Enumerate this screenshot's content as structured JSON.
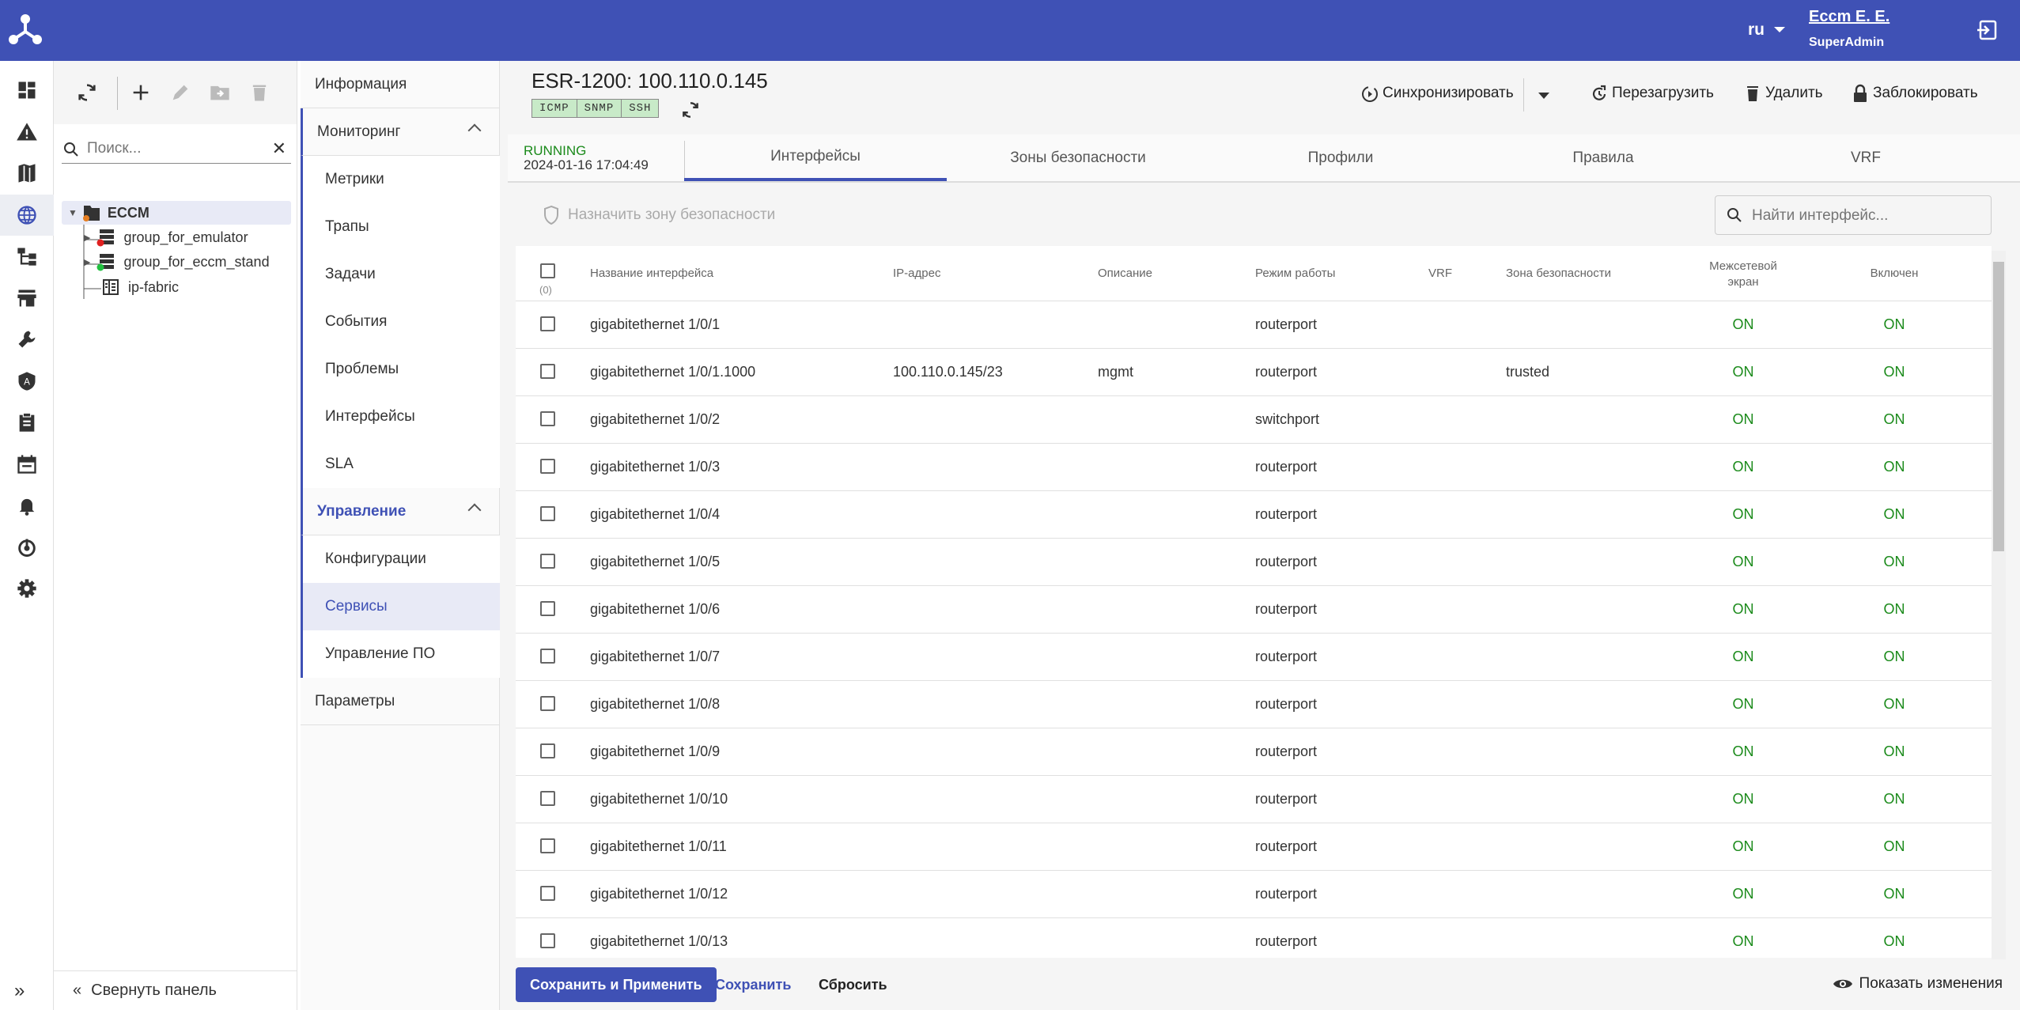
{
  "header": {
    "lang": "ru",
    "user_name": "Eccm E. E.",
    "user_role": "SuperAdmin"
  },
  "colors": {
    "brand": "#3f51b5",
    "on": "#1a8a1a",
    "badge_bg": "#c8eac8"
  },
  "rail": {
    "icons": [
      "dashboard-icon",
      "warning-icon",
      "map-icon",
      "globe-icon",
      "topology-icon",
      "store-icon",
      "wrench-icon",
      "auto-icon",
      "clipboard-icon",
      "calendar-icon",
      "bell-icon",
      "power-icon",
      "gear-icon"
    ],
    "active": "globe-icon"
  },
  "tree": {
    "search_placeholder": "Поиск...",
    "nodes": [
      {
        "label": "ECCM"
      },
      {
        "label": "group_for_emulator"
      },
      {
        "label": "group_for_eccm_stand"
      },
      {
        "label": "ip-fabric"
      }
    ],
    "collapse_label": "Свернуть панель"
  },
  "menu": {
    "info": "Информация",
    "monitoring": "Мониторинг",
    "monitoring_items": [
      "Метрики",
      "Трапы",
      "Задачи",
      "События",
      "Проблемы",
      "Интерфейсы",
      "SLA"
    ],
    "management": "Управление",
    "management_items": [
      "Конфигурации",
      "Сервисы",
      "Управление ПО"
    ],
    "selected": "Сервисы",
    "params": "Параметры"
  },
  "device": {
    "title": "ESR-1200: 100.110.0.145",
    "badges": [
      "ICMP",
      "SNMP",
      "SSH"
    ],
    "status": "RUNNING",
    "timestamp": "2024-01-16 17:04:49"
  },
  "actions": {
    "sync": "Синхронизировать",
    "reboot": "Перезагрузить",
    "delete": "Удалить",
    "lock": "Заблокировать"
  },
  "tabs": [
    "Интерфейсы",
    "Зоны безопасности",
    "Профили",
    "Правила",
    "VRF"
  ],
  "active_tab": "Интерфейсы",
  "toolbar": {
    "assign_zone": "Назначить зону безопасности",
    "search_placeholder": "Найти интерфейс..."
  },
  "table": {
    "selected_count": "(0)",
    "columns": [
      "Название интерфейса",
      "IP-адрес",
      "Описание",
      "Режим работы",
      "VRF",
      "Зона безопасности",
      "Межсетевой экран",
      "Включен"
    ],
    "rows": [
      [
        "gigabitethernet 1/0/1",
        "",
        "",
        "routerport",
        "",
        "",
        "ON",
        "ON"
      ],
      [
        "gigabitethernet 1/0/1.1000",
        "100.110.0.145/23",
        "mgmt",
        "routerport",
        "",
        "trusted",
        "ON",
        "ON"
      ],
      [
        "gigabitethernet 1/0/2",
        "",
        "",
        "switchport",
        "",
        "",
        "ON",
        "ON"
      ],
      [
        "gigabitethernet 1/0/3",
        "",
        "",
        "routerport",
        "",
        "",
        "ON",
        "ON"
      ],
      [
        "gigabitethernet 1/0/4",
        "",
        "",
        "routerport",
        "",
        "",
        "ON",
        "ON"
      ],
      [
        "gigabitethernet 1/0/5",
        "",
        "",
        "routerport",
        "",
        "",
        "ON",
        "ON"
      ],
      [
        "gigabitethernet 1/0/6",
        "",
        "",
        "routerport",
        "",
        "",
        "ON",
        "ON"
      ],
      [
        "gigabitethernet 1/0/7",
        "",
        "",
        "routerport",
        "",
        "",
        "ON",
        "ON"
      ],
      [
        "gigabitethernet 1/0/8",
        "",
        "",
        "routerport",
        "",
        "",
        "ON",
        "ON"
      ],
      [
        "gigabitethernet 1/0/9",
        "",
        "",
        "routerport",
        "",
        "",
        "ON",
        "ON"
      ],
      [
        "gigabitethernet 1/0/10",
        "",
        "",
        "routerport",
        "",
        "",
        "ON",
        "ON"
      ],
      [
        "gigabitethernet 1/0/11",
        "",
        "",
        "routerport",
        "",
        "",
        "ON",
        "ON"
      ],
      [
        "gigabitethernet 1/0/12",
        "",
        "",
        "routerport",
        "",
        "",
        "ON",
        "ON"
      ],
      [
        "gigabitethernet 1/0/13",
        "",
        "",
        "routerport",
        "",
        "",
        "ON",
        "ON"
      ]
    ]
  },
  "footer": {
    "save_apply": "Сохранить и Применить",
    "save": "Сохранить",
    "reset": "Сбросить",
    "show_changes": "Показать изменения"
  }
}
